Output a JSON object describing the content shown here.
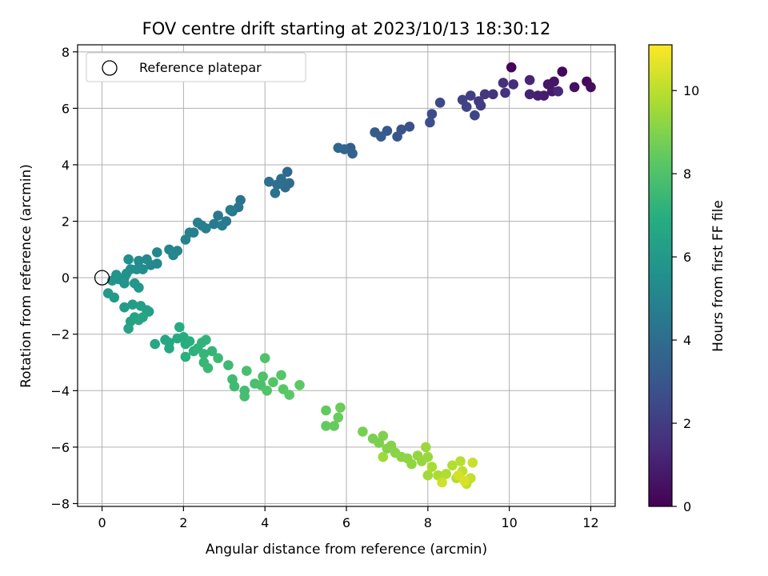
{
  "chart_data": {
    "type": "scatter",
    "title": "FOV centre drift starting at 2023/10/13 18:30:12",
    "xlabel": "Angular distance from reference (arcmin)",
    "ylabel": "Rotation from reference (arcmin)",
    "xlim": [
      -0.6,
      12.6
    ],
    "ylim": [
      -8.1,
      8.25
    ],
    "xticks": [
      0,
      2,
      4,
      6,
      8,
      10,
      12
    ],
    "yticks": [
      -8,
      -6,
      -4,
      -2,
      0,
      2,
      4,
      6,
      8
    ],
    "grid": true,
    "legend": {
      "position": "top-left",
      "label": "Reference platepar"
    },
    "reference_point": {
      "x": 0,
      "y": 0
    },
    "colorbar": {
      "label": "Hours from first FF file",
      "range": [
        0,
        11.1
      ],
      "ticks": [
        0,
        2,
        4,
        6,
        8,
        10
      ],
      "colormap": "viridis"
    },
    "colormap_stops": [
      "#440154",
      "#472c7a",
      "#3b518b",
      "#2c718e",
      "#21908d",
      "#27ad81",
      "#5cc863",
      "#aadc32",
      "#fde725"
    ],
    "points_columns": [
      "x",
      "y",
      "hours"
    ],
    "points": [
      [
        10.05,
        7.45,
        0.1
      ],
      [
        11.3,
        7.3,
        0.2
      ],
      [
        11.9,
        6.95,
        0.3
      ],
      [
        12.0,
        6.75,
        0.4
      ],
      [
        11.6,
        6.75,
        0.5
      ],
      [
        11.1,
        6.95,
        0.6
      ],
      [
        10.95,
        6.85,
        0.7
      ],
      [
        11.05,
        6.6,
        0.8
      ],
      [
        10.85,
        6.45,
        0.9
      ],
      [
        10.7,
        6.45,
        1.0
      ],
      [
        10.5,
        6.5,
        1.1
      ],
      [
        10.5,
        7.0,
        1.2
      ],
      [
        11.2,
        6.6,
        1.3
      ],
      [
        10.1,
        6.85,
        1.4
      ],
      [
        9.85,
        6.9,
        1.5
      ],
      [
        9.9,
        6.55,
        1.6
      ],
      [
        9.6,
        6.5,
        1.7
      ],
      [
        9.4,
        6.5,
        1.8
      ],
      [
        9.25,
        6.25,
        1.9
      ],
      [
        9.3,
        6.1,
        2.0
      ],
      [
        9.05,
        6.45,
        2.1
      ],
      [
        8.85,
        6.3,
        2.2
      ],
      [
        8.95,
        6.05,
        2.3
      ],
      [
        9.15,
        5.75,
        2.4
      ],
      [
        8.3,
        6.2,
        2.5
      ],
      [
        8.1,
        5.8,
        2.6
      ],
      [
        8.05,
        5.5,
        2.7
      ],
      [
        7.55,
        5.35,
        2.8
      ],
      [
        7.35,
        5.25,
        2.9
      ],
      [
        7.25,
        5.0,
        3.0
      ],
      [
        7.0,
        5.2,
        3.1
      ],
      [
        6.85,
        5.0,
        3.2
      ],
      [
        6.7,
        5.15,
        3.3
      ],
      [
        6.1,
        4.6,
        3.4
      ],
      [
        6.15,
        4.4,
        3.5
      ],
      [
        5.95,
        4.55,
        3.6
      ],
      [
        5.8,
        4.6,
        3.7
      ],
      [
        4.55,
        3.75,
        3.8
      ],
      [
        4.6,
        3.35,
        3.9
      ],
      [
        4.5,
        3.2,
        4.0
      ],
      [
        4.4,
        3.5,
        4.05
      ],
      [
        4.3,
        3.3,
        4.1
      ],
      [
        4.1,
        3.4,
        4.15
      ],
      [
        4.25,
        3.0,
        4.2
      ],
      [
        3.4,
        2.75,
        4.3
      ],
      [
        3.35,
        2.5,
        4.35
      ],
      [
        3.2,
        2.35,
        4.4
      ],
      [
        3.05,
        2.0,
        4.45
      ],
      [
        2.85,
        2.2,
        4.5
      ],
      [
        2.75,
        1.9,
        4.55
      ],
      [
        2.95,
        1.85,
        4.6
      ],
      [
        3.15,
        2.4,
        4.65
      ],
      [
        2.55,
        1.75,
        4.7
      ],
      [
        2.45,
        1.85,
        4.75
      ],
      [
        2.35,
        1.95,
        4.8
      ],
      [
        2.25,
        1.6,
        4.85
      ],
      [
        2.15,
        1.6,
        4.9
      ],
      [
        2.05,
        1.35,
        4.95
      ],
      [
        1.85,
        0.95,
        5.0
      ],
      [
        1.65,
        1.0,
        5.05
      ],
      [
        1.75,
        0.8,
        5.1
      ],
      [
        1.35,
        0.9,
        5.15
      ],
      [
        1.35,
        0.5,
        5.2
      ],
      [
        1.2,
        0.45,
        5.25
      ],
      [
        1.1,
        0.65,
        5.3
      ],
      [
        0.9,
        0.6,
        5.35
      ],
      [
        1.0,
        0.3,
        5.4
      ],
      [
        0.85,
        0.3,
        5.45
      ],
      [
        0.65,
        0.65,
        5.5
      ],
      [
        0.7,
        0.3,
        5.55
      ],
      [
        0.6,
        0.15,
        5.6
      ],
      [
        0.55,
        0.0,
        5.65
      ],
      [
        0.4,
        -0.05,
        5.7
      ],
      [
        0.35,
        0.1,
        5.75
      ],
      [
        0.25,
        -0.1,
        5.8
      ],
      [
        0.55,
        -0.2,
        5.85
      ],
      [
        0.8,
        -0.2,
        5.9
      ],
      [
        0.9,
        -0.35,
        5.95
      ],
      [
        0.15,
        -0.55,
        6.0
      ],
      [
        0.3,
        -0.7,
        6.05
      ],
      [
        0.55,
        -1.05,
        6.1
      ],
      [
        0.75,
        -0.95,
        6.15
      ],
      [
        0.95,
        -1.0,
        6.2
      ],
      [
        1.1,
        -1.15,
        6.25
      ],
      [
        1.15,
        -1.2,
        6.3
      ],
      [
        0.8,
        -1.4,
        6.35
      ],
      [
        0.7,
        -1.55,
        6.4
      ],
      [
        0.65,
        -1.8,
        6.45
      ],
      [
        0.9,
        -1.5,
        6.5
      ],
      [
        1.0,
        -1.4,
        6.55
      ],
      [
        1.3,
        -2.35,
        6.6
      ],
      [
        1.55,
        -2.2,
        6.65
      ],
      [
        1.65,
        -2.3,
        6.7
      ],
      [
        1.65,
        -2.5,
        6.75
      ],
      [
        1.85,
        -2.15,
        6.8
      ],
      [
        1.9,
        -1.75,
        6.85
      ],
      [
        2.0,
        -2.1,
        6.9
      ],
      [
        2.05,
        -2.35,
        6.95
      ],
      [
        2.15,
        -2.25,
        7.0
      ],
      [
        2.05,
        -2.8,
        7.05
      ],
      [
        2.25,
        -2.6,
        7.1
      ],
      [
        2.35,
        -2.5,
        7.15
      ],
      [
        2.45,
        -2.3,
        7.2
      ],
      [
        2.55,
        -2.2,
        7.25
      ],
      [
        2.7,
        -2.6,
        7.3
      ],
      [
        2.5,
        -2.7,
        7.35
      ],
      [
        2.5,
        -3.0,
        7.4
      ],
      [
        2.6,
        -3.2,
        7.45
      ],
      [
        2.85,
        -2.85,
        7.5
      ],
      [
        3.1,
        -3.1,
        7.55
      ],
      [
        3.2,
        -3.6,
        7.6
      ],
      [
        3.25,
        -3.85,
        7.65
      ],
      [
        3.5,
        -4.0,
        7.7
      ],
      [
        3.5,
        -4.2,
        7.75
      ],
      [
        3.55,
        -3.3,
        7.8
      ],
      [
        3.75,
        -3.75,
        7.85
      ],
      [
        3.9,
        -3.8,
        7.9
      ],
      [
        3.95,
        -3.5,
        7.95
      ],
      [
        4.0,
        -2.85,
        8.0
      ],
      [
        4.05,
        -4.0,
        8.05
      ],
      [
        4.2,
        -3.7,
        8.1
      ],
      [
        4.4,
        -3.45,
        8.15
      ],
      [
        4.45,
        -3.95,
        8.2
      ],
      [
        4.6,
        -4.15,
        8.25
      ],
      [
        4.85,
        -3.8,
        8.3
      ],
      [
        5.5,
        -4.7,
        8.4
      ],
      [
        5.5,
        -5.25,
        8.45
      ],
      [
        5.7,
        -5.25,
        8.5
      ],
      [
        5.8,
        -4.95,
        8.55
      ],
      [
        5.85,
        -4.6,
        8.6
      ],
      [
        6.4,
        -5.45,
        8.8
      ],
      [
        6.65,
        -5.7,
        8.85
      ],
      [
        6.8,
        -5.85,
        8.9
      ],
      [
        6.9,
        -5.6,
        8.95
      ],
      [
        7.0,
        -6.05,
        9.0
      ],
      [
        7.1,
        -5.95,
        9.05
      ],
      [
        7.2,
        -6.2,
        9.1
      ],
      [
        7.35,
        -6.35,
        9.15
      ],
      [
        7.5,
        -6.4,
        9.2
      ],
      [
        7.6,
        -6.6,
        9.25
      ],
      [
        7.75,
        -6.3,
        9.3
      ],
      [
        7.85,
        -6.5,
        9.35
      ],
      [
        8.0,
        -6.35,
        9.4
      ],
      [
        7.95,
        -6.0,
        9.45
      ],
      [
        6.9,
        -6.35,
        9.5
      ],
      [
        8.0,
        -7.0,
        9.6
      ],
      [
        8.1,
        -6.7,
        9.7
      ],
      [
        8.25,
        -7.0,
        9.75
      ],
      [
        8.45,
        -6.95,
        9.8
      ],
      [
        8.6,
        -6.65,
        9.85
      ],
      [
        8.7,
        -7.1,
        9.9
      ],
      [
        8.8,
        -6.5,
        9.95
      ],
      [
        8.85,
        -6.85,
        10.05
      ],
      [
        8.95,
        -7.3,
        10.1
      ],
      [
        9.05,
        -7.1,
        10.15
      ],
      [
        9.1,
        -6.55,
        10.2
      ],
      [
        8.35,
        -7.25,
        10.3
      ],
      [
        8.75,
        -7.0,
        10.4
      ],
      [
        8.9,
        -7.2,
        10.5
      ]
    ]
  }
}
